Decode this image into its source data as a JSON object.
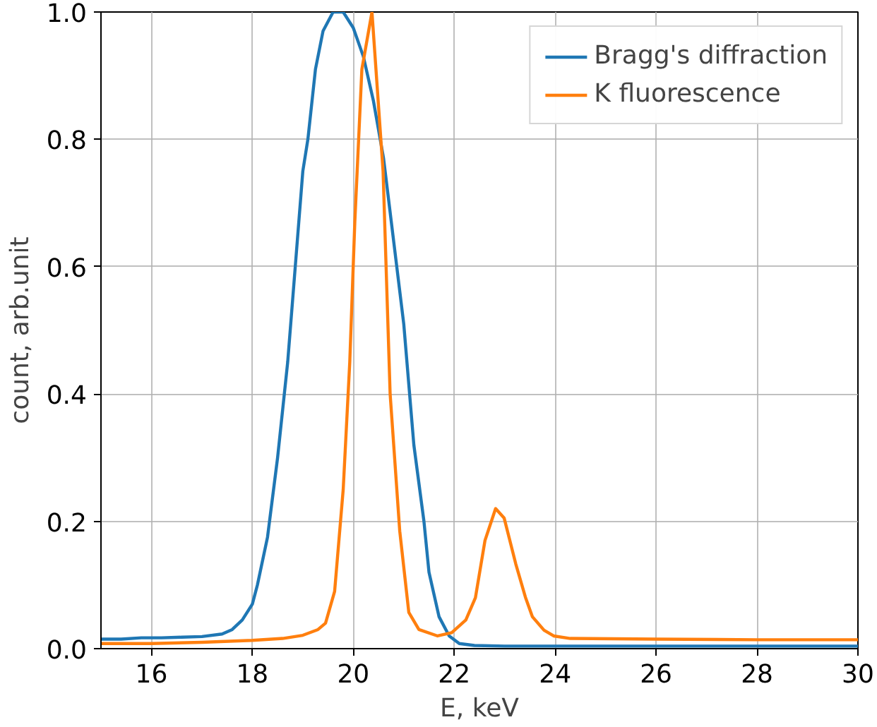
{
  "chart_data": {
    "type": "line",
    "xlabel": "E, keV",
    "ylabel": "count, arb.unit",
    "xlim": [
      15,
      30
    ],
    "ylim": [
      0,
      1.0
    ],
    "xticks": [
      16,
      18,
      20,
      22,
      24,
      26,
      28,
      30
    ],
    "yticks": [
      {
        "value": 0,
        "label": "0.0"
      },
      0.2,
      0.4,
      0.6,
      0.8,
      {
        "value": 1,
        "label": "1.0"
      }
    ],
    "grid": true,
    "legend": "top right",
    "marker": "none",
    "line_style": "solid",
    "series": [
      {
        "name": "Bragg's diffraction",
        "color": "#1f77b4",
        "x": [
          15.0,
          15.4,
          15.8,
          16.2,
          16.6,
          17.0,
          17.4,
          17.6,
          17.8,
          18.0,
          18.1,
          18.3,
          18.5,
          18.7,
          18.85,
          19.0,
          19.1,
          19.25,
          19.4,
          19.6,
          19.8,
          20.0,
          20.2,
          20.4,
          20.6,
          20.8,
          21.0,
          21.2,
          21.4,
          21.5,
          21.7,
          21.9,
          22.1,
          22.4,
          23.0,
          24.0,
          26.0,
          28.0,
          30.0
        ],
        "values": [
          0.015,
          0.015,
          0.017,
          0.017,
          0.018,
          0.019,
          0.023,
          0.03,
          0.045,
          0.07,
          0.1,
          0.175,
          0.3,
          0.45,
          0.6,
          0.75,
          0.8,
          0.91,
          0.97,
          1.0,
          1.0,
          0.975,
          0.93,
          0.86,
          0.77,
          0.64,
          0.51,
          0.32,
          0.2,
          0.12,
          0.05,
          0.02,
          0.008,
          0.005,
          0.004,
          0.004,
          0.004,
          0.004,
          0.004
        ]
      },
      {
        "name": "K fluorescence",
        "color": "#ff7f0e",
        "x": [
          15.0,
          16.0,
          17.0,
          18.0,
          18.6,
          19.0,
          19.3,
          19.45,
          19.63,
          19.8,
          19.93,
          20.03,
          20.17,
          20.37,
          20.59,
          20.73,
          20.92,
          21.1,
          21.3,
          21.67,
          21.95,
          22.23,
          22.42,
          22.61,
          22.82,
          22.99,
          23.22,
          23.41,
          23.55,
          23.78,
          23.97,
          24.3,
          26.0,
          28.0,
          30.0
        ],
        "values": [
          0.008,
          0.008,
          0.01,
          0.013,
          0.016,
          0.021,
          0.03,
          0.04,
          0.09,
          0.25,
          0.45,
          0.67,
          0.91,
          1.0,
          0.75,
          0.4,
          0.185,
          0.057,
          0.03,
          0.02,
          0.025,
          0.045,
          0.08,
          0.17,
          0.22,
          0.205,
          0.133,
          0.081,
          0.05,
          0.029,
          0.02,
          0.016,
          0.015,
          0.014,
          0.014
        ]
      }
    ]
  }
}
